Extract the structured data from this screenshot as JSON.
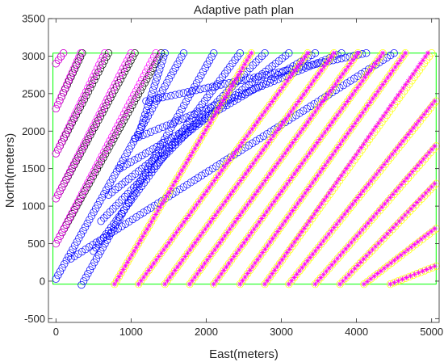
{
  "chart_data": {
    "type": "scatter",
    "title": "Adaptive path plan",
    "xlabel": "East(meters)",
    "ylabel": "North(meters)",
    "xlim": [
      -100,
      5100
    ],
    "ylim": [
      -550,
      3500
    ],
    "xticks": [
      0,
      1000,
      2000,
      3000,
      4000,
      5000
    ],
    "yticks": [
      -500,
      0,
      500,
      1000,
      1500,
      2000,
      2500,
      3000,
      3500
    ],
    "grid": false,
    "legend": "none",
    "boundary": {
      "x": [
        -40,
        5060
      ],
      "y": [
        -40,
        3040
      ],
      "color": "#00ff00"
    },
    "spacing": 33,
    "series": [
      {
        "marker": "circle",
        "color": "#000000",
        "lines": [
          {
            "x0": 0,
            "y0": 2300,
            "x1": 350,
            "y1": 3040
          },
          {
            "x0": 0,
            "y0": 1700,
            "x1": 700,
            "y1": 3040
          },
          {
            "x0": 0,
            "y0": 1100,
            "x1": 1050,
            "y1": 3040
          },
          {
            "x0": 0,
            "y0": 500,
            "x1": 1400,
            "y1": 3040
          },
          {
            "x0": 0,
            "y0": 2900,
            "x1": 100,
            "y1": 3040
          }
        ]
      },
      {
        "marker": "circle",
        "color": "#ff00ff",
        "lines": [
          {
            "x0": 0,
            "y0": 2900,
            "x1": 100,
            "y1": 3040
          },
          {
            "x0": 0,
            "y0": 2300,
            "x1": 330,
            "y1": 3040
          },
          {
            "x0": 0,
            "y0": 1700,
            "x1": 650,
            "y1": 3040
          },
          {
            "x0": 0,
            "y0": 1100,
            "x1": 1000,
            "y1": 3040
          },
          {
            "x0": 0,
            "y0": 500,
            "x1": 1330,
            "y1": 3040
          }
        ]
      },
      {
        "marker": "circle",
        "color": "#0000ff",
        "lines": [
          {
            "x0": 0,
            "y0": 30,
            "x1": 1700,
            "y1": 3040
          },
          {
            "x0": 340,
            "y0": -50,
            "x1": 2100,
            "y1": 3040
          },
          {
            "x0": 500,
            "y0": 400,
            "x1": 2450,
            "y1": 3040
          },
          {
            "x0": 600,
            "y0": 800,
            "x1": 2780,
            "y1": 3040
          },
          {
            "x0": 700,
            "y0": 1150,
            "x1": 3100,
            "y1": 3040
          },
          {
            "x0": 850,
            "y0": 1500,
            "x1": 3450,
            "y1": 3040
          },
          {
            "x0": 1050,
            "y0": 1900,
            "x1": 3800,
            "y1": 3040
          },
          {
            "x0": 1200,
            "y0": 2400,
            "x1": 4130,
            "y1": 3040
          },
          {
            "x0": 200,
            "y0": 300,
            "x1": 4500,
            "y1": 3040
          },
          {
            "x0": 1100,
            "y0": 1950,
            "x1": 1450,
            "y1": 3040
          }
        ]
      },
      {
        "marker": "circle",
        "color": "#ffff00",
        "lines": [
          {
            "x0": 780,
            "y0": -40,
            "x1": 2600,
            "y1": 3040
          },
          {
            "x0": 1100,
            "y0": -40,
            "x1": 3350,
            "y1": 3040
          },
          {
            "x0": 1450,
            "y0": -40,
            "x1": 3700,
            "y1": 3040
          },
          {
            "x0": 1780,
            "y0": -40,
            "x1": 4020,
            "y1": 3040
          },
          {
            "x0": 2100,
            "y0": -40,
            "x1": 4350,
            "y1": 3040
          },
          {
            "x0": 2450,
            "y0": -40,
            "x1": 4650,
            "y1": 3040
          },
          {
            "x0": 2780,
            "y0": -40,
            "x1": 5000,
            "y1": 3040
          },
          {
            "x0": 3100,
            "y0": -40,
            "x1": 5060,
            "y1": 2400
          },
          {
            "x0": 3450,
            "y0": -40,
            "x1": 5060,
            "y1": 1800
          },
          {
            "x0": 3780,
            "y0": -40,
            "x1": 5060,
            "y1": 1300
          },
          {
            "x0": 4100,
            "y0": -40,
            "x1": 5060,
            "y1": 700
          },
          {
            "x0": 4450,
            "y0": -40,
            "x1": 5060,
            "y1": 200
          }
        ]
      },
      {
        "marker": "star",
        "color": "#ff00ff",
        "lines": [
          {
            "x0": 780,
            "y0": -40,
            "x1": 2600,
            "y1": 3040
          },
          {
            "x0": 1100,
            "y0": -40,
            "x1": 3350,
            "y1": 3040
          },
          {
            "x0": 1450,
            "y0": -40,
            "x1": 3700,
            "y1": 3040
          },
          {
            "x0": 1780,
            "y0": -40,
            "x1": 4020,
            "y1": 3040
          },
          {
            "x0": 2100,
            "y0": -40,
            "x1": 4350,
            "y1": 3040
          },
          {
            "x0": 2450,
            "y0": -40,
            "x1": 4650,
            "y1": 3040
          },
          {
            "x0": 2780,
            "y0": -40,
            "x1": 4950,
            "y1": 3040
          },
          {
            "x0": 3100,
            "y0": -40,
            "x1": 5040,
            "y1": 2400
          },
          {
            "x0": 3450,
            "y0": -40,
            "x1": 5040,
            "y1": 1800
          },
          {
            "x0": 3780,
            "y0": -40,
            "x1": 5040,
            "y1": 1300
          },
          {
            "x0": 4100,
            "y0": -40,
            "x1": 5040,
            "y1": 700
          },
          {
            "x0": 4450,
            "y0": -40,
            "x1": 5040,
            "y1": 200
          }
        ]
      }
    ]
  }
}
